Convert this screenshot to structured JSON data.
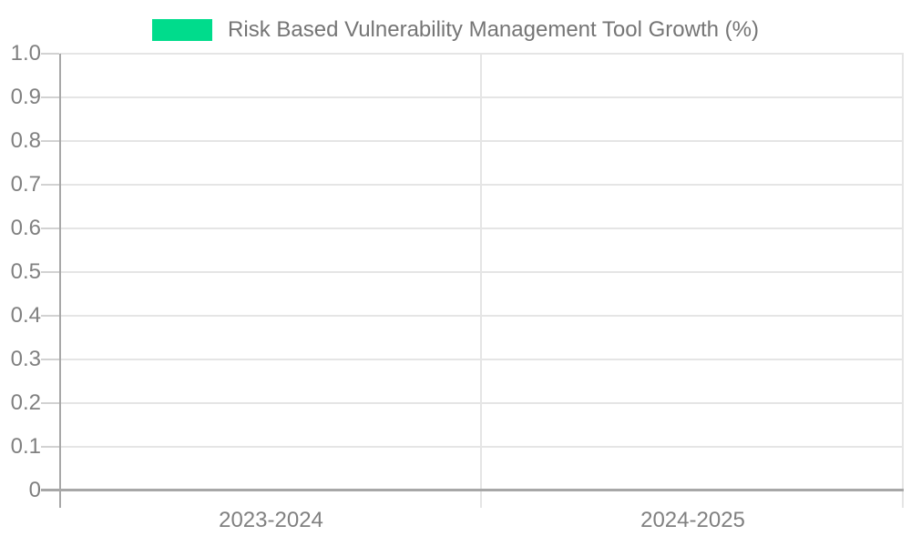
{
  "legend": {
    "position": "top-center",
    "items": [
      {
        "label": "Risk Based Vulnerability Management Tool Growth (%)",
        "color": "#00dc8c"
      }
    ]
  },
  "colors": {
    "series_green": "#00dc8c",
    "axis_line": "#a7a7a7",
    "grid_line": "#e5e5e5",
    "tick_line": "#d2d2d2",
    "label_text": "#808080",
    "legend_text": "#757575",
    "background": "#ffffff"
  },
  "chart_data": {
    "type": "bar",
    "title": "Risk Based Vulnerability Management Tool Growth (%)",
    "categories": [
      "2023-2024",
      "2024-2025"
    ],
    "series": [
      {
        "name": "Risk Based Vulnerability Management Tool Growth (%)",
        "color": "#00dc8c",
        "values": [
          0,
          0
        ]
      }
    ],
    "xlabel": "",
    "ylabel": "",
    "ylim": [
      0,
      1.0
    ],
    "ytick_interval": 0.1,
    "ytick_labels": [
      "0",
      "0.1",
      "0.2",
      "0.3",
      "0.4",
      "0.5",
      "0.6",
      "0.7",
      "0.8",
      "0.9",
      "1.0"
    ],
    "grid": true,
    "legend_position": "top"
  }
}
